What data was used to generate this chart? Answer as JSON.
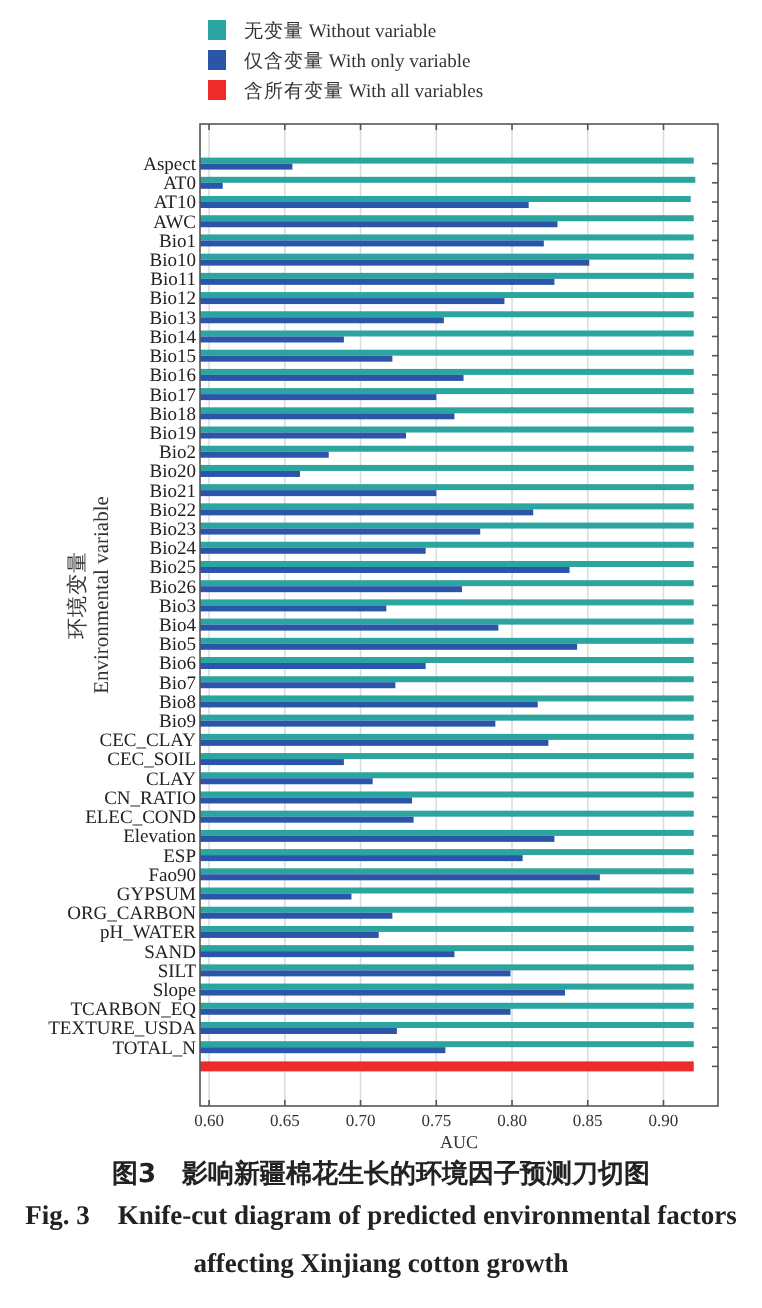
{
  "chart_data": {
    "type": "bar",
    "orientation": "horizontal",
    "title": "图3　影响新疆棉花生长的环境因子预测刀切图",
    "subtitle": "Fig. 3　Knife-cut diagram of predicted environmental factors affecting Xinjiang cotton growth",
    "xlabel": "AUC",
    "ylabel": "环境变量\nEnvironmental variable",
    "categories": [
      "Aspect",
      "AT0",
      "AT10",
      "AWC",
      "Bio1",
      "Bio10",
      "Bio11",
      "Bio12",
      "Bio13",
      "Bio14",
      "Bio15",
      "Bio16",
      "Bio17",
      "Bio18",
      "Bio19",
      "Bio2",
      "Bio20",
      "Bio21",
      "Bio22",
      "Bio23",
      "Bio24",
      "Bio25",
      "Bio26",
      "Bio3",
      "Bio4",
      "Bio5",
      "Bio6",
      "Bio7",
      "Bio8",
      "Bio9",
      "CEC_CLAY",
      "CEC_SOIL",
      "CLAY",
      "CN_RATIO",
      "ELEC_COND",
      "Elevation",
      "ESP",
      "Fao90",
      "GYPSUM",
      "ORG_CARBON",
      "pH_WATER",
      "SAND",
      "SILT",
      "Slope",
      "TCARBON_EQ",
      "TEXTURE_USDA",
      "TOTAL_N",
      null
    ],
    "series": [
      {
        "name": "无变量 Without variable",
        "color": "#2aa5a0",
        "values": [
          0.92,
          0.921,
          0.918,
          0.92,
          0.92,
          0.92,
          0.92,
          0.92,
          0.92,
          0.92,
          0.92,
          0.92,
          0.92,
          0.92,
          0.92,
          0.92,
          0.92,
          0.92,
          0.92,
          0.92,
          0.92,
          0.92,
          0.92,
          0.92,
          0.92,
          0.92,
          0.92,
          0.92,
          0.92,
          0.92,
          0.92,
          0.92,
          0.92,
          0.92,
          0.92,
          0.92,
          0.92,
          0.92,
          0.92,
          0.92,
          0.92,
          0.92,
          0.92,
          0.92,
          0.92,
          0.92,
          0.92,
          null
        ]
      },
      {
        "name": "仅含变量 With only variable",
        "color": "#2b55a8",
        "values": [
          0.655,
          0.609,
          0.811,
          0.83,
          0.821,
          0.851,
          0.828,
          0.795,
          0.755,
          0.689,
          0.721,
          0.768,
          0.75,
          0.762,
          0.73,
          0.679,
          0.66,
          0.75,
          0.814,
          0.779,
          0.743,
          0.838,
          0.767,
          0.717,
          0.791,
          0.843,
          0.743,
          0.723,
          0.817,
          0.789,
          0.824,
          0.689,
          0.708,
          0.734,
          0.735,
          0.828,
          0.807,
          0.858,
          0.694,
          0.721,
          0.712,
          0.762,
          0.799,
          0.835,
          0.799,
          0.724,
          0.756,
          null
        ]
      },
      {
        "name": "含所有变量 With all variables",
        "color": "#ee2b2b",
        "values": [
          null,
          null,
          null,
          null,
          null,
          null,
          null,
          null,
          null,
          null,
          null,
          null,
          null,
          null,
          null,
          null,
          null,
          null,
          null,
          null,
          null,
          null,
          null,
          null,
          null,
          null,
          null,
          null,
          null,
          null,
          null,
          null,
          null,
          null,
          null,
          null,
          null,
          null,
          null,
          null,
          null,
          null,
          null,
          null,
          null,
          null,
          null,
          0.92
        ]
      }
    ],
    "xlim": [
      0.594,
      0.936
    ],
    "xticks": [
      {
        "value": 0.6,
        "label": "0.60"
      },
      0.65,
      {
        "value": 0.7,
        "label": "0.70"
      },
      0.75,
      {
        "value": 0.8,
        "label": "0.80"
      },
      0.85,
      {
        "value": 0.9,
        "label": "0.90"
      }
    ],
    "grid": "x",
    "legend": "top"
  }
}
